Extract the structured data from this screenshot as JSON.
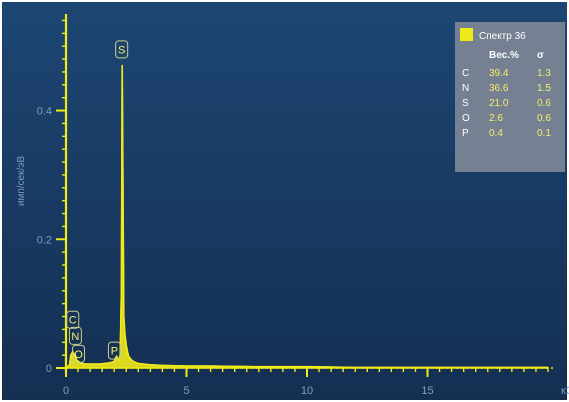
{
  "colors": {
    "plot_background_top": "#1d4673",
    "plot_background_bottom": "#142f52",
    "spectrum": "#f1ea1a",
    "axis": "#f1ea1a",
    "tick_label": "#7e9cc4",
    "legend_background": "#7d8596",
    "legend_text": "#f4f06a",
    "legend_header_text": "#ffffff"
  },
  "chart_data": {
    "type": "line",
    "title": "",
    "xlabel": "",
    "ylabel": "имп/сек/эВ",
    "xlim": [
      0,
      20
    ],
    "ylim": [
      0,
      0.55
    ],
    "x_ticks": [
      0,
      5,
      10,
      15
    ],
    "x_tick_labels": [
      "0",
      "5",
      "10",
      "15"
    ],
    "x_axis_end_label": "кЭ",
    "y_ticks": [
      0,
      0.2,
      0.4
    ],
    "y_tick_labels": [
      "0",
      "0.2",
      "0.4"
    ],
    "grid": false,
    "legend_position": "top-right",
    "series": [
      {
        "name": "Спектр 36",
        "x": [
          0.0,
          0.15,
          0.2,
          0.28,
          0.4,
          0.45,
          0.52,
          0.6,
          0.8,
          1.0,
          1.4,
          1.8,
          2.0,
          2.05,
          2.1,
          2.2,
          2.25,
          2.3,
          2.33,
          2.36,
          2.4,
          2.45,
          2.5,
          2.55,
          2.6,
          2.7,
          2.8,
          3.0,
          3.5,
          4.0,
          5.0,
          6.0,
          8.0,
          10.0,
          12.0,
          14.0,
          16.0,
          18.0,
          20.0
        ],
        "y": [
          0.0,
          0.005,
          0.02,
          0.025,
          0.018,
          0.012,
          0.01,
          0.008,
          0.006,
          0.006,
          0.006,
          0.008,
          0.01,
          0.015,
          0.018,
          0.012,
          0.02,
          0.12,
          0.47,
          0.3,
          0.08,
          0.05,
          0.035,
          0.025,
          0.018,
          0.013,
          0.01,
          0.007,
          0.005,
          0.004,
          0.003,
          0.003,
          0.002,
          0.002,
          0.001,
          0.001,
          0.001,
          0.001,
          0.001
        ]
      }
    ],
    "peak_labels": [
      {
        "text": "S",
        "x": 2.31,
        "y": 0.495
      },
      {
        "text": "C",
        "x": 0.28,
        "y": 0.075
      },
      {
        "text": "N",
        "x": 0.39,
        "y": 0.05
      },
      {
        "text": "O",
        "x": 0.52,
        "y": 0.022
      },
      {
        "text": "P",
        "x": 2.01,
        "y": 0.027
      }
    ],
    "legend": {
      "title": "Спектр 36",
      "col_header_1": "Вес.%",
      "col_header_2": "σ",
      "rows": [
        {
          "element": "C",
          "wt": "39.4",
          "sigma": "1.3"
        },
        {
          "element": "N",
          "wt": "36.6",
          "sigma": "1.5"
        },
        {
          "element": "S",
          "wt": "21.0",
          "sigma": "0.6"
        },
        {
          "element": "O",
          "wt": "2.6",
          "sigma": "0.6"
        },
        {
          "element": "P",
          "wt": "0.4",
          "sigma": "0.1"
        }
      ]
    }
  }
}
